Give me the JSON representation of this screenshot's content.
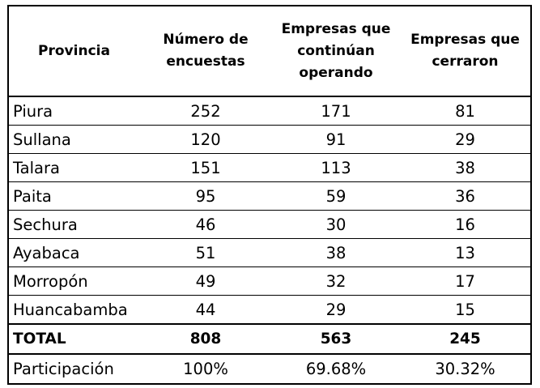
{
  "headers": {
    "provincia": "Provincia",
    "encuestas": "Número de encuestas",
    "operando": "Empresas que continúan operando",
    "cerraron": "Empresas que cerraron"
  },
  "rows": [
    {
      "provincia": "Piura",
      "encuestas": "252",
      "operando": "171",
      "cerraron": "81"
    },
    {
      "provincia": "Sullana",
      "encuestas": "120",
      "operando": "91",
      "cerraron": "29"
    },
    {
      "provincia": "Talara",
      "encuestas": "151",
      "operando": "113",
      "cerraron": "38"
    },
    {
      "provincia": "Paita",
      "encuestas": "95",
      "operando": "59",
      "cerraron": "36"
    },
    {
      "provincia": "Sechura",
      "encuestas": "46",
      "operando": "30",
      "cerraron": "16"
    },
    {
      "provincia": "Ayabaca",
      "encuestas": "51",
      "operando": "38",
      "cerraron": "13"
    },
    {
      "provincia": "Morropón",
      "encuestas": "49",
      "operando": "32",
      "cerraron": "17"
    },
    {
      "provincia": "Huancabamba",
      "encuestas": "44",
      "operando": "29",
      "cerraron": "15"
    }
  ],
  "total": {
    "label": "TOTAL",
    "encuestas": "808",
    "operando": "563",
    "cerraron": "245"
  },
  "participacion": {
    "label": "Participación",
    "encuestas": "100%",
    "operando": "69.68%",
    "cerraron": "30.32%"
  }
}
